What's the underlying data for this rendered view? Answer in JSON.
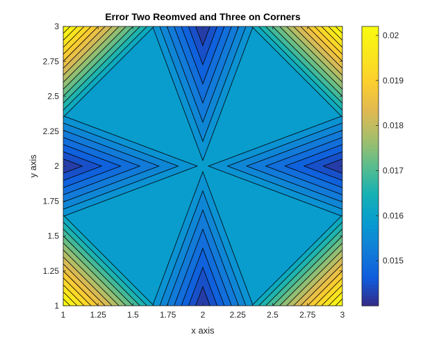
{
  "chart_data": {
    "type": "heatmap",
    "subtype": "filled-contour",
    "title": "Error Two Reomved and Three on Corners",
    "xlabel": "x axis",
    "ylabel": "y axis",
    "xlim": [
      1,
      3
    ],
    "ylim": [
      1,
      3
    ],
    "x_ticks": [
      "1",
      "1.25",
      "1.5",
      "1.75",
      "2",
      "2.25",
      "2.5",
      "2.75",
      "3"
    ],
    "y_ticks": [
      "1",
      "1.25",
      "1.5",
      "1.75",
      "2",
      "2.25",
      "2.5",
      "2.75",
      "3"
    ],
    "colorbar": {
      "colormap": "parula",
      "range": [
        0.014,
        0.0202
      ],
      "ticks": [
        "0.015",
        "0.016",
        "0.017",
        "0.018",
        "0.019",
        "0.02"
      ]
    },
    "field": {
      "background_value": 0.0159,
      "corner_max_value": 0.0202,
      "corners": [
        [
          1,
          1
        ],
        [
          3,
          1
        ],
        [
          1,
          3
        ],
        [
          3,
          3
        ]
      ],
      "edge_min_value": 0.014,
      "edge_minima": [
        [
          2,
          1
        ],
        [
          2,
          3
        ],
        [
          1,
          2
        ],
        [
          3,
          2
        ]
      ],
      "contour_lines": "black"
    },
    "grid": false,
    "legend": "none"
  }
}
